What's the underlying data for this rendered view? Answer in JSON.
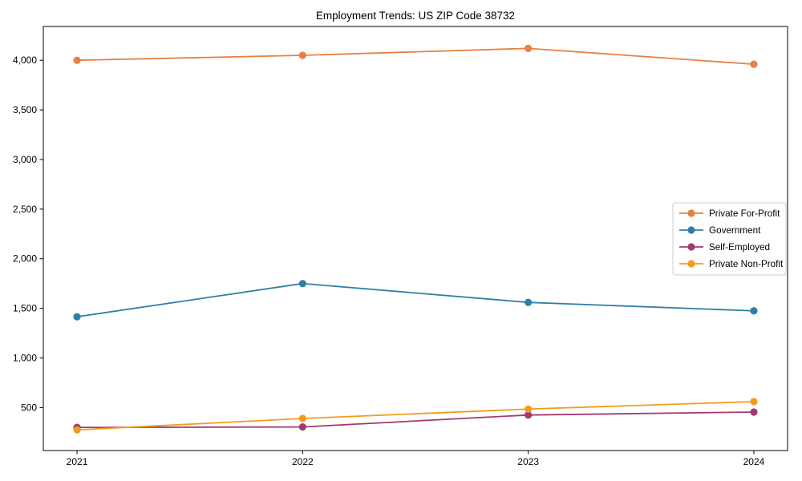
{
  "chart_data": {
    "type": "line",
    "title": "Employment Trends: US ZIP Code 38732",
    "xlabel": "",
    "ylabel": "",
    "x": [
      2021,
      2022,
      2023,
      2024
    ],
    "x_tick_labels": [
      "2021",
      "2022",
      "2023",
      "2024"
    ],
    "series": [
      {
        "name": "Private For-Profit",
        "color": "#e8803f",
        "values": [
          4000,
          4050,
          4120,
          3960
        ]
      },
      {
        "name": "Government",
        "color": "#2e80a6",
        "values": [
          1415,
          1750,
          1560,
          1475
        ]
      },
      {
        "name": "Self-Employed",
        "color": "#a23a72",
        "values": [
          300,
          305,
          425,
          455
        ]
      },
      {
        "name": "Private Non-Profit",
        "color": "#f39c1b",
        "values": [
          275,
          390,
          485,
          560
        ]
      }
    ],
    "yticks": [
      500,
      1000,
      1500,
      2000,
      2500,
      3000,
      3500,
      4000
    ],
    "ytick_labels": [
      "500",
      "1,000",
      "1,500",
      "2,000",
      "2,500",
      "3,000",
      "3,500",
      "4,000"
    ],
    "ylim": [
      67,
      4341
    ],
    "grid": false,
    "legend_position": "center-right",
    "frame_color": "#000000",
    "background_color": "#ffffff",
    "legend_border_color": "#cccccc"
  }
}
